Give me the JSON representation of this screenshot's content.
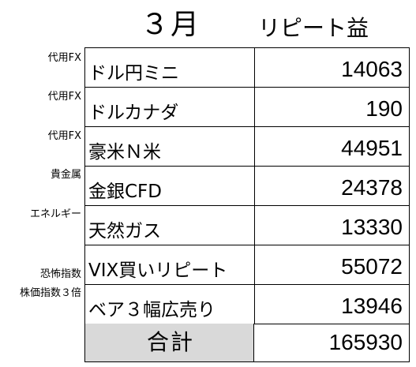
{
  "header": {
    "month": "３月",
    "label": "リピート益"
  },
  "rows": [
    {
      "category": "代用FX",
      "name": "ドル円ミニ",
      "value": "14063"
    },
    {
      "category": "代用FX",
      "name": "ドルカナダ",
      "value": "190"
    },
    {
      "category": "代用FX",
      "name": "豪米Ｎ米",
      "value": "44951"
    },
    {
      "category": "貴金属",
      "name": "金銀CFD",
      "value": "24378"
    },
    {
      "category": "エネルギー",
      "name": "天然ガス",
      "value": "13330"
    },
    {
      "category": "恐怖指数",
      "name": "VIX買いリピート",
      "value": "55072"
    },
    {
      "category": "株価指数３倍",
      "name": "ベア３幅広売り",
      "value": "13946"
    }
  ],
  "total": {
    "label": "合計",
    "value": "165930"
  }
}
